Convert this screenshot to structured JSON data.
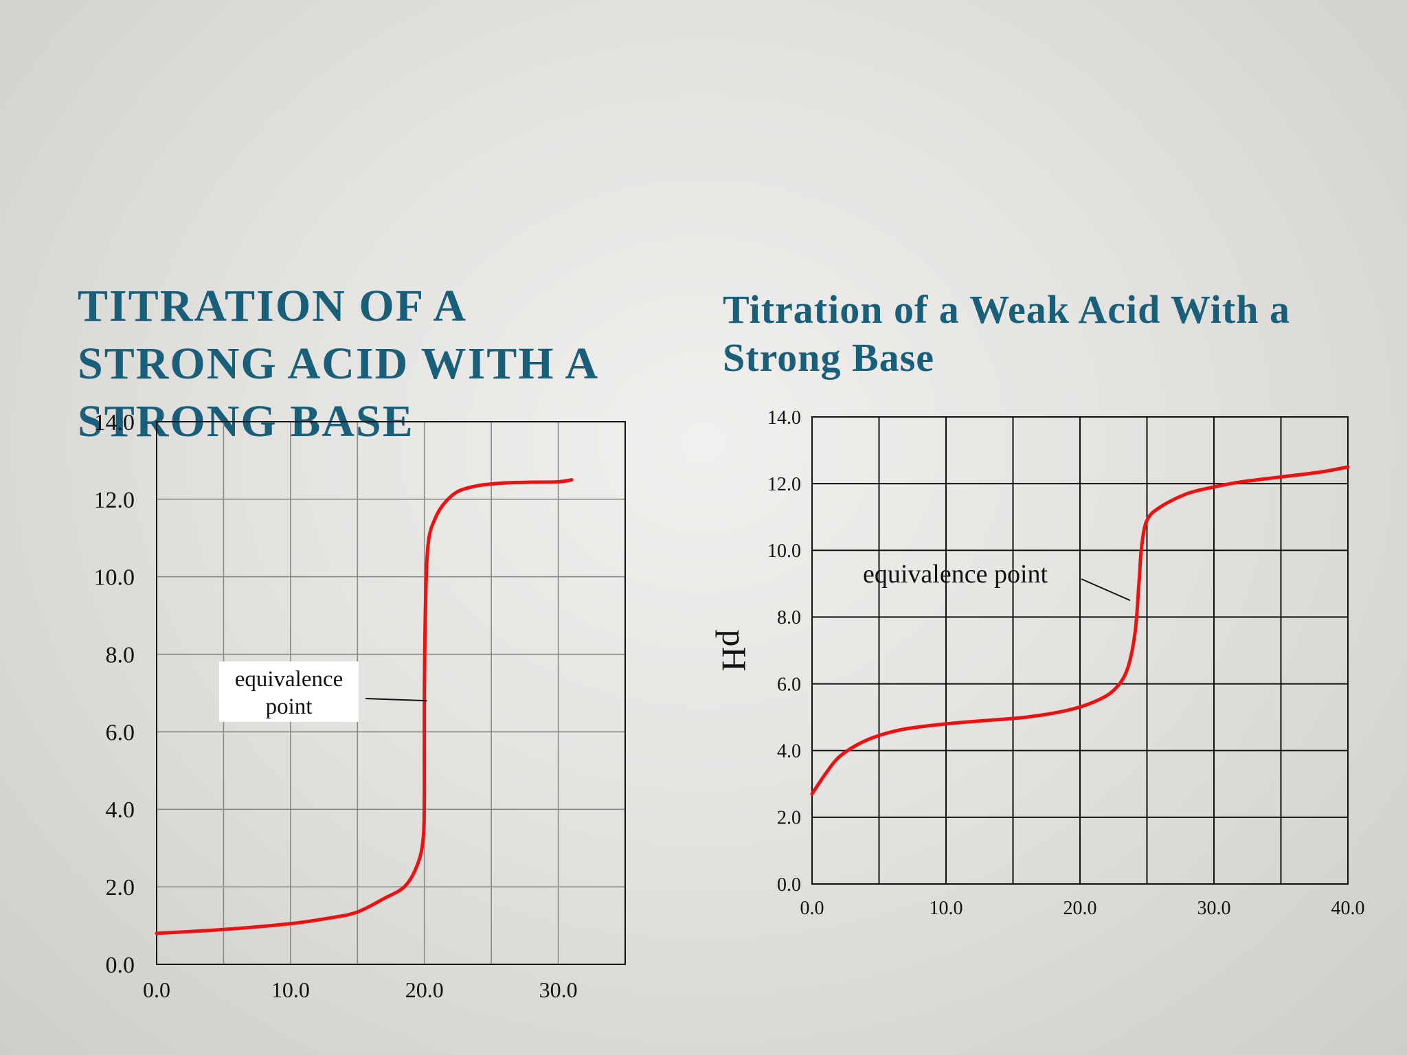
{
  "titles": {
    "left": "TITRATION OF A STRONG ACID  WITH A STRONG BASE",
    "right": "Titration of a Weak Acid With a Strong Base"
  },
  "colors": {
    "title": "#1a5f7a",
    "curve": "#ee1111"
  },
  "chart_data": [
    {
      "type": "line",
      "title": "TITRATION OF A STRONG ACID  WITH A STRONG BASE",
      "xlabel": "",
      "ylabel": "",
      "xlim": [
        0,
        35
      ],
      "ylim": [
        0,
        14
      ],
      "grid": true,
      "x_ticks": [
        "0.0",
        "10.0",
        "20.0",
        "30.0"
      ],
      "y_ticks": [
        "0.0",
        "2.0",
        "4.0",
        "6.0",
        "8.0",
        "10.0",
        "12.0",
        "14.0"
      ],
      "annotation": {
        "lines": [
          "equivalence",
          "point"
        ],
        "x": 20.2,
        "y": 6.8
      },
      "series": [
        {
          "x": [
            0,
            5,
            10,
            13,
            15,
            17,
            18.5,
            19.4,
            19.9,
            20.0,
            20.0,
            20.1,
            20.3,
            20.8,
            21.5,
            22.5,
            24,
            26,
            28,
            30,
            31
          ],
          "y": [
            0.8,
            0.9,
            1.05,
            1.2,
            1.35,
            1.7,
            2.0,
            2.5,
            3.2,
            4.5,
            7.0,
            9.5,
            10.9,
            11.5,
            11.9,
            12.2,
            12.35,
            12.42,
            12.44,
            12.45,
            12.5
          ]
        }
      ]
    },
    {
      "type": "line",
      "title": "Titration of a Weak Acid With a Strong Base",
      "xlabel": "",
      "ylabel": "pH",
      "xlim": [
        0,
        40
      ],
      "ylim": [
        0,
        14
      ],
      "grid": true,
      "x_ticks": [
        "0.0",
        "10.0",
        "20.0",
        "30.0",
        "40.0"
      ],
      "y_ticks": [
        "0.0",
        "2.0",
        "4.0",
        "6.0",
        "8.0",
        "10.0",
        "12.0",
        "14.0"
      ],
      "annotation": {
        "lines": [
          "equivalence point"
        ],
        "x": 24.0,
        "y": 8.5
      },
      "series": [
        {
          "x": [
            0,
            1,
            2,
            3.5,
            5,
            7,
            10,
            13,
            16,
            19,
            21,
            22.5,
            23.5,
            24.1,
            24.4,
            24.6,
            25,
            26,
            28,
            30,
            32,
            35,
            38,
            40
          ],
          "y": [
            2.7,
            3.3,
            3.8,
            4.2,
            4.45,
            4.65,
            4.8,
            4.9,
            5.0,
            5.2,
            5.45,
            5.8,
            6.4,
            7.5,
            9.0,
            10.1,
            10.9,
            11.3,
            11.7,
            11.9,
            12.05,
            12.2,
            12.35,
            12.5
          ]
        }
      ]
    }
  ]
}
